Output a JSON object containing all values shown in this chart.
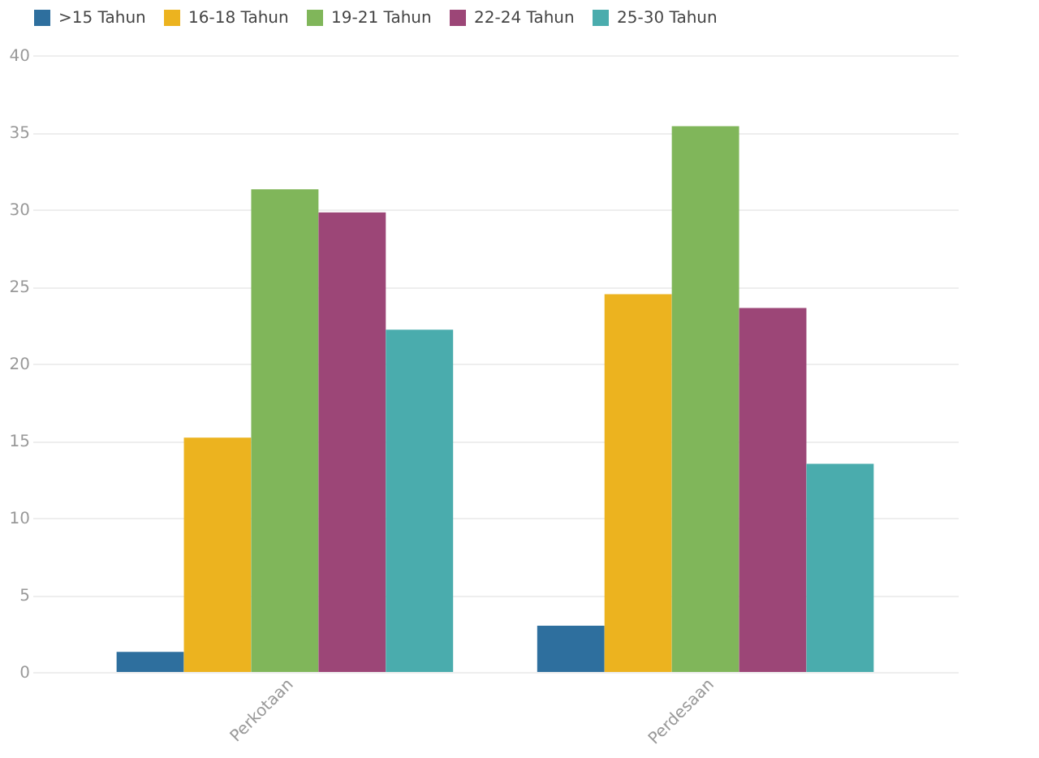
{
  "chart_data": {
    "type": "bar",
    "categories": [
      "Perkotaan",
      "Perdesaan"
    ],
    "series": [
      {
        "name": ">15 Tahun",
        "color": "#2e6f9e",
        "values": [
          1.3,
          3.0
        ]
      },
      {
        "name": "16-18 Tahun",
        "color": "#ecb31f",
        "values": [
          15.2,
          24.5
        ]
      },
      {
        "name": "19-21 Tahun",
        "color": "#80b65a",
        "values": [
          31.3,
          35.4
        ]
      },
      {
        "name": "22-24 Tahun",
        "color": "#9c4677",
        "values": [
          29.8,
          23.6
        ]
      },
      {
        "name": "25-30 Tahun",
        "color": "#4aacad",
        "values": [
          22.2,
          13.5
        ]
      }
    ],
    "ylim": [
      0,
      40
    ],
    "yticks": [
      0,
      5,
      10,
      15,
      20,
      25,
      30,
      35,
      40
    ],
    "grid": "y",
    "legend": "top"
  }
}
